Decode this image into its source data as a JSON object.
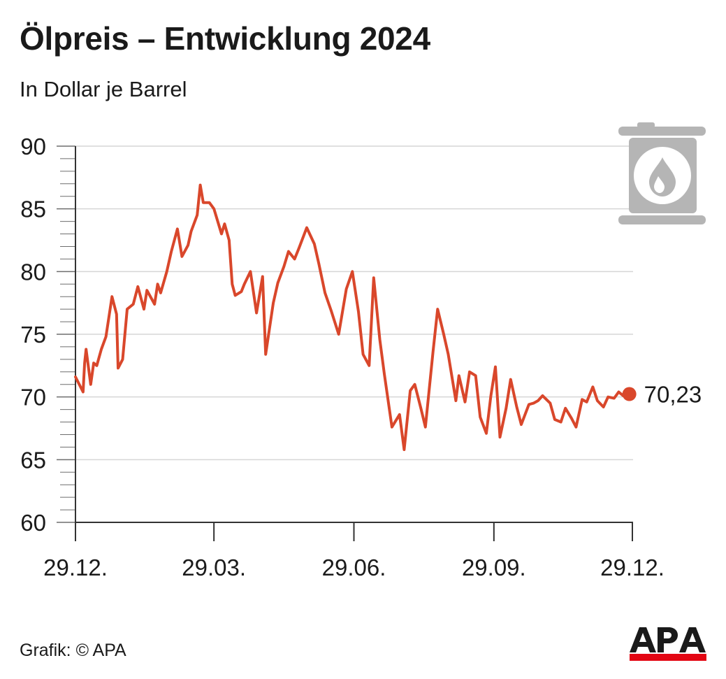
{
  "title": "Ölpreis – Entwicklung 2024",
  "subtitle": "In Dollar je Barrel",
  "source": "Grafik: © APA",
  "logo": {
    "text": "APA",
    "color": "#1a1a1a",
    "bar_color": "#e30613"
  },
  "icon": {
    "name": "oil-barrel-icon",
    "color": "#b5b5b5"
  },
  "chart_data": {
    "type": "line",
    "title": "Ölpreis – Entwicklung 2024",
    "subtitle": "In Dollar je Barrel",
    "xlabel": "",
    "ylabel": "",
    "ylim": [
      60,
      90
    ],
    "yticks": [
      60,
      65,
      70,
      75,
      80,
      85,
      90
    ],
    "ytick_labels": [
      "60",
      "65",
      "70",
      "75",
      "80",
      "85",
      "90"
    ],
    "xlim": [
      "2023-12-29",
      "2024-12-29"
    ],
    "xticks": [
      "2023-12-29",
      "2024-03-29",
      "2024-06-29",
      "2024-09-29",
      "2024-12-29"
    ],
    "xtick_labels": [
      "29.12.",
      "29.03.",
      "29.06.",
      "29.09.",
      "29.12."
    ],
    "grid": "horizontal",
    "line_color": "#d9472b",
    "series": [
      {
        "name": "",
        "x": [
          "2023-12-29",
          "2024-01-03",
          "2024-01-04",
          "2024-01-05",
          "2024-01-08",
          "2024-01-10",
          "2024-01-12",
          "2024-01-15",
          "2024-01-18",
          "2024-01-22",
          "2024-01-25",
          "2024-01-26",
          "2024-01-29",
          "2024-02-01",
          "2024-02-05",
          "2024-02-08",
          "2024-02-12",
          "2024-02-14",
          "2024-02-19",
          "2024-02-21",
          "2024-02-23",
          "2024-02-27",
          "2024-03-01",
          "2024-03-05",
          "2024-03-08",
          "2024-03-12",
          "2024-03-14",
          "2024-03-18",
          "2024-03-20",
          "2024-03-22",
          "2024-03-26",
          "2024-03-29",
          "2024-04-03",
          "2024-04-05",
          "2024-04-08",
          "2024-04-10",
          "2024-04-12",
          "2024-04-16",
          "2024-04-18",
          "2024-04-22",
          "2024-04-26",
          "2024-04-30",
          "2024-05-02",
          "2024-05-07",
          "2024-05-10",
          "2024-05-14",
          "2024-05-17",
          "2024-05-21",
          "2024-05-24",
          "2024-05-29",
          "2024-06-03",
          "2024-06-06",
          "2024-06-10",
          "2024-06-14",
          "2024-06-19",
          "2024-06-24",
          "2024-06-28",
          "2024-07-02",
          "2024-07-05",
          "2024-07-09",
          "2024-07-12",
          "2024-07-16",
          "2024-07-19",
          "2024-07-24",
          "2024-07-29",
          "2024-08-01",
          "2024-08-05",
          "2024-08-08",
          "2024-08-12",
          "2024-08-15",
          "2024-08-20",
          "2024-08-23",
          "2024-08-27",
          "2024-08-30",
          "2024-09-04",
          "2024-09-06",
          "2024-09-10",
          "2024-09-13",
          "2024-09-17",
          "2024-09-20",
          "2024-09-24",
          "2024-09-27",
          "2024-09-30",
          "2024-10-03",
          "2024-10-07",
          "2024-10-10",
          "2024-10-14",
          "2024-10-17",
          "2024-10-22",
          "2024-10-25",
          "2024-10-28",
          "2024-10-31",
          "2024-11-05",
          "2024-11-08",
          "2024-11-12",
          "2024-11-15",
          "2024-11-19",
          "2024-11-22",
          "2024-11-26",
          "2024-11-29",
          "2024-12-03",
          "2024-12-06",
          "2024-12-10",
          "2024-12-13",
          "2024-12-17",
          "2024-12-20",
          "2024-12-23",
          "2024-12-27"
        ],
        "values": [
          71.6,
          70.4,
          72.7,
          73.8,
          71.0,
          72.7,
          72.5,
          73.8,
          74.8,
          78.0,
          76.6,
          72.3,
          73.0,
          77.0,
          77.4,
          78.8,
          77.0,
          78.5,
          77.4,
          79.0,
          78.3,
          80.0,
          81.6,
          83.4,
          81.2,
          82.1,
          83.2,
          84.5,
          86.9,
          85.5,
          85.5,
          85.0,
          83.0,
          83.8,
          82.5,
          79.0,
          78.1,
          78.4,
          79.0,
          80.0,
          76.7,
          79.6,
          73.4,
          77.5,
          79.1,
          80.4,
          81.6,
          81.0,
          81.9,
          83.5,
          82.2,
          80.6,
          78.3,
          76.9,
          75.0,
          78.6,
          80.0,
          76.8,
          73.4,
          72.5,
          79.5,
          74.6,
          71.8,
          67.6,
          68.6,
          65.8,
          70.5,
          71.0,
          69.1,
          67.6,
          73.6,
          77.0,
          75.0,
          73.4,
          69.7,
          71.7,
          69.6,
          72.0,
          71.7,
          68.4,
          67.1,
          70.1,
          72.4,
          66.8,
          69.1,
          71.4,
          69.2,
          67.8,
          69.4,
          69.5,
          69.7,
          70.1,
          69.5,
          68.2,
          68.0,
          69.1,
          68.3,
          67.6,
          69.8,
          69.6,
          70.8,
          69.7,
          69.2,
          70.0,
          69.9,
          70.4,
          70.1,
          70.23
        ]
      }
    ],
    "end_value": 70.23,
    "end_label": "70,23"
  }
}
